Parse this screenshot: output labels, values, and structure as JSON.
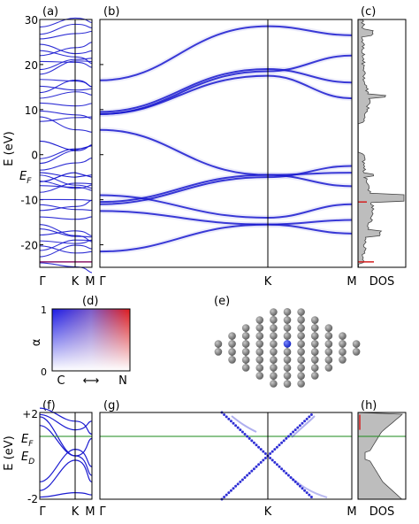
{
  "panel_labels": {
    "a": "(a)",
    "b": "(b)",
    "c": "(c)",
    "d": "(d)",
    "e": "(e)",
    "f": "(f)",
    "g": "(g)",
    "h": "(h)"
  },
  "colors": {
    "band": "#1a1ad0",
    "frame": "#000000",
    "fermi_line": "#1a8a1a",
    "dos_fill": "#bdbdbd",
    "dos_line": "#444444",
    "red_mark": "#d42020",
    "purple_line": "#8c1a6a",
    "atom": "#7b7b7b",
    "atom_dopant": "#2233dd"
  },
  "chart_data": [
    {
      "id": "a",
      "type": "line",
      "title": "",
      "ylabel": "E (eV)",
      "fermi_label": "E_F",
      "x_ticks": [
        "Γ",
        "K",
        "M"
      ],
      "y_ticks": [
        -20,
        -10,
        0,
        10,
        20,
        30
      ],
      "ylim": [
        -25,
        30
      ],
      "description_series": "dense supercell band structure"
    },
    {
      "id": "b",
      "type": "line",
      "x_ticks": [
        "Γ",
        "K",
        "M"
      ],
      "x_positions": [
        0,
        2,
        3
      ],
      "ylim": [
        -25,
        30
      ],
      "series": [
        {
          "values_at_points": [
            -21.5,
            -15.5,
            -14.5
          ]
        },
        {
          "values_at_points": [
            -12.5,
            -15.5,
            -17.5
          ]
        },
        {
          "values_at_points": [
            -10.5,
            -4.5,
            -7.0
          ]
        },
        {
          "values_at_points": [
            -11.0,
            -5.0,
            -2.5
          ]
        },
        {
          "values_at_points": [
            -9.0,
            -14.0,
            -11.0
          ]
        },
        {
          "values_at_points": [
            5.5,
            -4.5,
            -4.0
          ]
        },
        {
          "values_at_points": [
            9.0,
            17.5,
            12.5
          ]
        },
        {
          "values_at_points": [
            9.5,
            19.0,
            16.0
          ]
        },
        {
          "values_at_points": [
            16.5,
            28.5,
            26.5
          ]
        },
        {
          "values_at_points": [
            9.0,
            18.5,
            22.0
          ]
        }
      ]
    },
    {
      "id": "c",
      "type": "area",
      "xlabel": "DOS",
      "ylim": [
        -25,
        30
      ]
    },
    {
      "id": "d",
      "type": "heatmap",
      "ylabel": "α",
      "y_ticks": [
        0,
        1
      ],
      "x_left_label": "C",
      "x_right_label": "N",
      "x_arrow": "⟷"
    },
    {
      "id": "f",
      "type": "line",
      "ylabel": "E (eV)",
      "y_ticks": [
        "-2",
        "+2"
      ],
      "ylim": [
        -2,
        2
      ],
      "fermi_label": "E_F",
      "dirac_label": "E_D",
      "x_ticks": [
        "Γ",
        "K",
        "M"
      ]
    },
    {
      "id": "g",
      "type": "line",
      "x_ticks": [
        "Γ",
        "K",
        "M"
      ],
      "ylim": [
        -2,
        2
      ],
      "fermi_level": 0.9,
      "dirac_point": [
        2.0,
        0.0
      ]
    },
    {
      "id": "h",
      "type": "area",
      "xlabel": "DOS",
      "ylim": [
        -2,
        2
      ]
    }
  ]
}
